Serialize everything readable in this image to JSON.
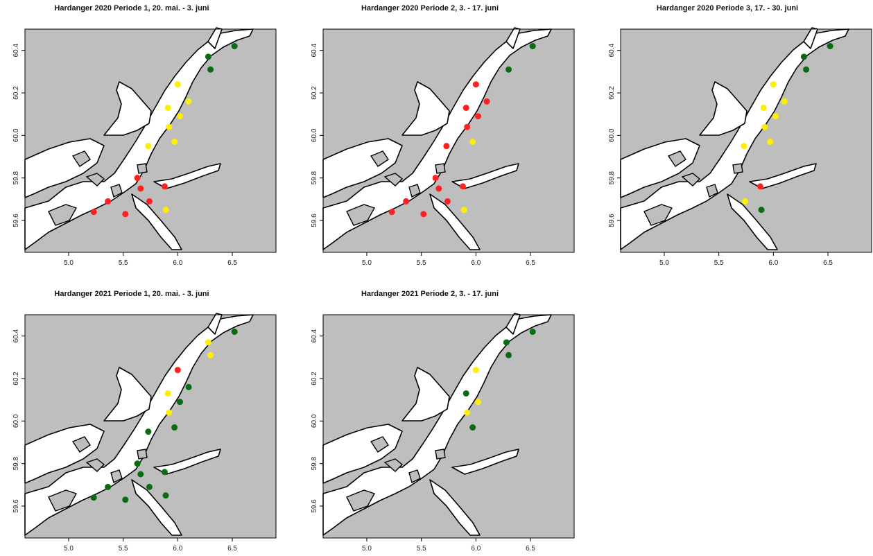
{
  "map": {
    "x_ticks": [
      "5.0",
      "5.5",
      "6.0",
      "6.5"
    ],
    "y_ticks": [
      "59.6",
      "59.8",
      "60.0",
      "60.2",
      "60.4"
    ],
    "lon_range": [
      4.6,
      6.9
    ],
    "lat_range": [
      59.45,
      60.5
    ],
    "colors": {
      "land": "#bebebe",
      "sea": "#ffffff",
      "border": "#000000",
      "red": "#ff2020",
      "yellow": "#ffee00",
      "green": "#0b6b12"
    }
  },
  "panels": [
    {
      "title": "Hardanger 2020 Periode 1, 20. mai. - 3. juni",
      "points": [
        {
          "lon": 6.28,
          "lat": 60.37,
          "status": "green"
        },
        {
          "lon": 6.52,
          "lat": 60.42,
          "status": "green"
        },
        {
          "lon": 6.3,
          "lat": 60.31,
          "status": "green"
        },
        {
          "lon": 6.0,
          "lat": 60.24,
          "status": "yellow"
        },
        {
          "lon": 6.1,
          "lat": 60.16,
          "status": "yellow"
        },
        {
          "lon": 5.91,
          "lat": 60.13,
          "status": "yellow"
        },
        {
          "lon": 6.02,
          "lat": 60.09,
          "status": "yellow"
        },
        {
          "lon": 5.92,
          "lat": 60.04,
          "status": "yellow"
        },
        {
          "lon": 5.97,
          "lat": 59.97,
          "status": "yellow"
        },
        {
          "lon": 5.73,
          "lat": 59.95,
          "status": "yellow"
        },
        {
          "lon": 5.63,
          "lat": 59.8,
          "status": "red"
        },
        {
          "lon": 5.66,
          "lat": 59.75,
          "status": "red"
        },
        {
          "lon": 5.88,
          "lat": 59.76,
          "status": "red"
        },
        {
          "lon": 5.74,
          "lat": 59.69,
          "status": "red"
        },
        {
          "lon": 5.36,
          "lat": 59.69,
          "status": "red"
        },
        {
          "lon": 5.23,
          "lat": 59.64,
          "status": "red"
        },
        {
          "lon": 5.52,
          "lat": 59.63,
          "status": "red"
        },
        {
          "lon": 5.89,
          "lat": 59.65,
          "status": "yellow"
        }
      ]
    },
    {
      "title": "Hardanger 2020 Periode 2, 3. - 17. juni",
      "points": [
        {
          "lon": 6.52,
          "lat": 60.42,
          "status": "green"
        },
        {
          "lon": 6.3,
          "lat": 60.31,
          "status": "green"
        },
        {
          "lon": 6.0,
          "lat": 60.24,
          "status": "red"
        },
        {
          "lon": 6.1,
          "lat": 60.16,
          "status": "red"
        },
        {
          "lon": 5.91,
          "lat": 60.13,
          "status": "red"
        },
        {
          "lon": 6.02,
          "lat": 60.09,
          "status": "red"
        },
        {
          "lon": 5.92,
          "lat": 60.04,
          "status": "red"
        },
        {
          "lon": 5.97,
          "lat": 59.97,
          "status": "yellow"
        },
        {
          "lon": 5.73,
          "lat": 59.95,
          "status": "red"
        },
        {
          "lon": 5.63,
          "lat": 59.8,
          "status": "red"
        },
        {
          "lon": 5.66,
          "lat": 59.75,
          "status": "red"
        },
        {
          "lon": 5.88,
          "lat": 59.76,
          "status": "red"
        },
        {
          "lon": 5.74,
          "lat": 59.69,
          "status": "red"
        },
        {
          "lon": 5.36,
          "lat": 59.69,
          "status": "red"
        },
        {
          "lon": 5.23,
          "lat": 59.64,
          "status": "red"
        },
        {
          "lon": 5.52,
          "lat": 59.63,
          "status": "red"
        },
        {
          "lon": 5.89,
          "lat": 59.65,
          "status": "yellow"
        }
      ]
    },
    {
      "title": "Hardanger 2020 Periode 3, 17. - 30. juni",
      "points": [
        {
          "lon": 6.28,
          "lat": 60.37,
          "status": "green"
        },
        {
          "lon": 6.52,
          "lat": 60.42,
          "status": "green"
        },
        {
          "lon": 6.3,
          "lat": 60.31,
          "status": "green"
        },
        {
          "lon": 6.0,
          "lat": 60.24,
          "status": "yellow"
        },
        {
          "lon": 6.1,
          "lat": 60.16,
          "status": "yellow"
        },
        {
          "lon": 5.91,
          "lat": 60.13,
          "status": "yellow"
        },
        {
          "lon": 6.02,
          "lat": 60.09,
          "status": "yellow"
        },
        {
          "lon": 5.92,
          "lat": 60.04,
          "status": "yellow"
        },
        {
          "lon": 5.97,
          "lat": 59.97,
          "status": "yellow"
        },
        {
          "lon": 5.73,
          "lat": 59.95,
          "status": "yellow"
        },
        {
          "lon": 5.88,
          "lat": 59.76,
          "status": "red"
        },
        {
          "lon": 5.74,
          "lat": 59.69,
          "status": "yellow"
        },
        {
          "lon": 5.89,
          "lat": 59.65,
          "status": "green"
        }
      ]
    },
    {
      "title": "Hardanger 2021 Periode 1, 20. mai. - 3. juni",
      "points": [
        {
          "lon": 6.28,
          "lat": 60.37,
          "status": "yellow"
        },
        {
          "lon": 6.52,
          "lat": 60.42,
          "status": "green"
        },
        {
          "lon": 6.3,
          "lat": 60.31,
          "status": "yellow"
        },
        {
          "lon": 6.0,
          "lat": 60.24,
          "status": "red"
        },
        {
          "lon": 6.1,
          "lat": 60.16,
          "status": "green"
        },
        {
          "lon": 5.91,
          "lat": 60.13,
          "status": "yellow"
        },
        {
          "lon": 6.02,
          "lat": 60.09,
          "status": "green"
        },
        {
          "lon": 5.92,
          "lat": 60.04,
          "status": "yellow"
        },
        {
          "lon": 5.97,
          "lat": 59.97,
          "status": "green"
        },
        {
          "lon": 5.73,
          "lat": 59.95,
          "status": "green"
        },
        {
          "lon": 5.63,
          "lat": 59.8,
          "status": "green"
        },
        {
          "lon": 5.66,
          "lat": 59.75,
          "status": "green"
        },
        {
          "lon": 5.88,
          "lat": 59.76,
          "status": "green"
        },
        {
          "lon": 5.74,
          "lat": 59.69,
          "status": "green"
        },
        {
          "lon": 5.36,
          "lat": 59.69,
          "status": "green"
        },
        {
          "lon": 5.23,
          "lat": 59.64,
          "status": "green"
        },
        {
          "lon": 5.52,
          "lat": 59.63,
          "status": "green"
        },
        {
          "lon": 5.89,
          "lat": 59.65,
          "status": "green"
        }
      ]
    },
    {
      "title": "Hardanger 2021 Periode 2, 3. - 17. juni",
      "points": [
        {
          "lon": 6.28,
          "lat": 60.37,
          "status": "green"
        },
        {
          "lon": 6.52,
          "lat": 60.42,
          "status": "green"
        },
        {
          "lon": 6.3,
          "lat": 60.31,
          "status": "green"
        },
        {
          "lon": 6.0,
          "lat": 60.24,
          "status": "yellow"
        },
        {
          "lon": 5.91,
          "lat": 60.13,
          "status": "green"
        },
        {
          "lon": 6.02,
          "lat": 60.09,
          "status": "yellow"
        },
        {
          "lon": 5.92,
          "lat": 60.04,
          "status": "yellow"
        },
        {
          "lon": 5.97,
          "lat": 59.97,
          "status": "green"
        }
      ]
    }
  ]
}
